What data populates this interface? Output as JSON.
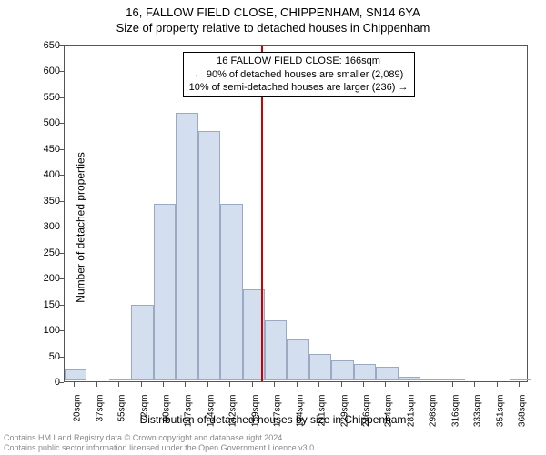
{
  "title": "16, FALLOW FIELD CLOSE, CHIPPENHAM, SN14 6YA",
  "subtitle": "Size of property relative to detached houses in Chippenham",
  "ylabel": "Number of detached properties",
  "xlabel": "Distribution of detached houses by size in Chippenham",
  "attribution1": "Contains HM Land Registry data © Crown copyright and database right 2024.",
  "attribution2": "Contains public sector information licensed under the Open Government Licence v3.0.",
  "chart": {
    "type": "histogram",
    "xlim": [
      12,
      375
    ],
    "ylim": [
      0,
      650
    ],
    "ytick_step": 50,
    "xtick_start": 20,
    "xtick_step": 17.4,
    "xtick_count": 21,
    "xtick_suffix": "sqm",
    "bar_x_start": 12,
    "bar_width_x": 17.4,
    "bars": [
      22,
      0,
      5,
      148,
      342,
      518,
      483,
      342,
      178,
      118,
      80,
      52,
      40,
      33,
      28,
      8,
      5,
      3,
      0,
      0,
      3
    ],
    "bar_fill": "#d3deee",
    "bar_border": "#9aa9c4",
    "axis_color": "#555555",
    "background": "#ffffff",
    "vline_x": 166,
    "vline_color": "#cc0000",
    "vline_width": 2,
    "tick_fontsize": 10,
    "label_fontsize": 12,
    "annotation": {
      "line1": "16 FALLOW FIELD CLOSE: 166sqm",
      "line2": "← 90% of detached houses are smaller (2,089)",
      "line3": "10% of semi-detached houses are larger (236) →",
      "x_center": 195,
      "y_top": 640
    }
  }
}
